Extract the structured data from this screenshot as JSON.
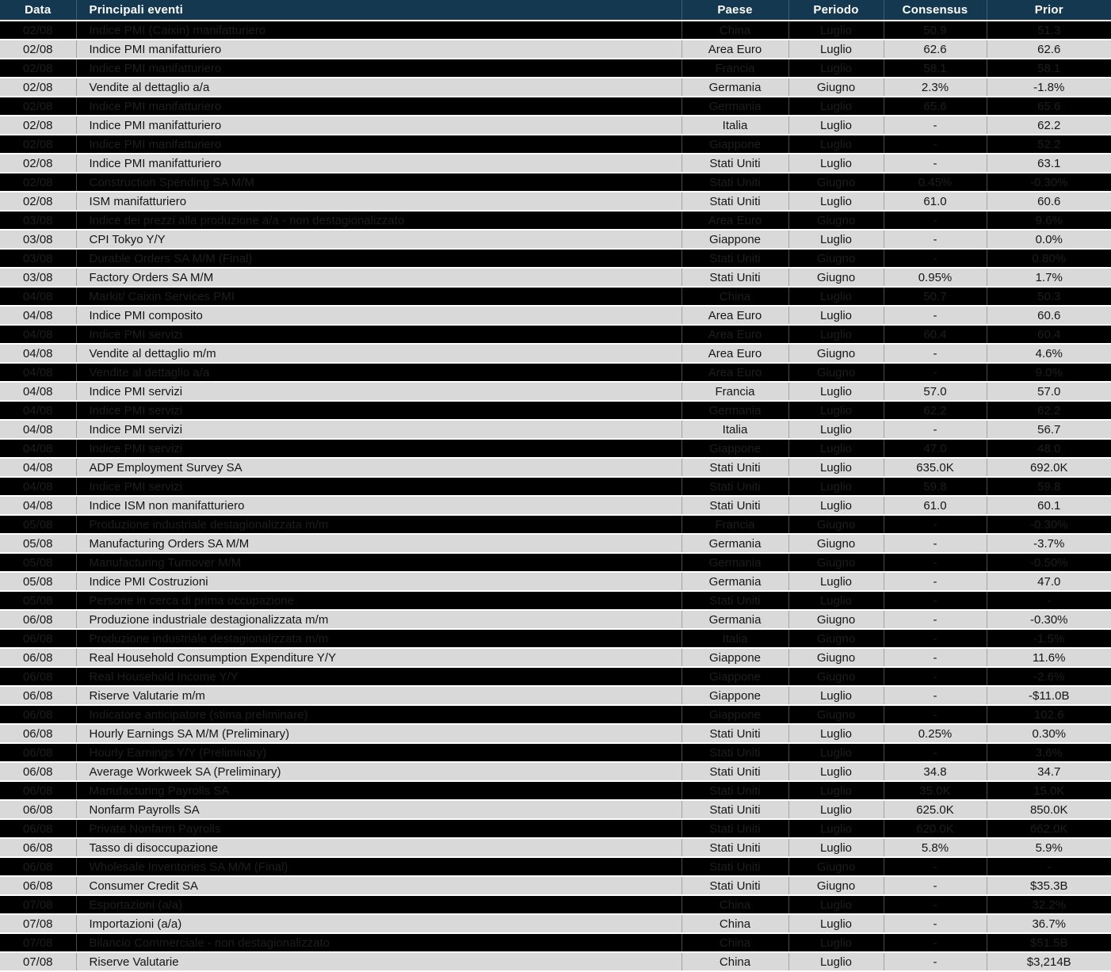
{
  "table": {
    "columns": [
      "Data",
      "Principali eventi",
      "Paese",
      "Periodo",
      "Consensus",
      "Prior"
    ],
    "rows": [
      {
        "data": "02/08",
        "evento": "Indice PMI (Caixin) manifatturiero",
        "paese": "China",
        "periodo": "Luglio",
        "consensus": "50.9",
        "prior": "51.3",
        "shade": "dark"
      },
      {
        "data": "02/08",
        "evento": "Indice PMI manifatturiero",
        "paese": "Area Euro",
        "periodo": "Luglio",
        "consensus": "62.6",
        "prior": "62.6",
        "shade": "light"
      },
      {
        "data": "02/08",
        "evento": "Indice PMI manifatturiero",
        "paese": "Francia",
        "periodo": "Luglio",
        "consensus": "58.1",
        "prior": "58.1",
        "shade": "dark"
      },
      {
        "data": "02/08",
        "evento": "Vendite al dettaglio a/a",
        "paese": "Germania",
        "periodo": "Giugno",
        "consensus": "2.3%",
        "prior": "-1.8%",
        "shade": "light"
      },
      {
        "data": "02/08",
        "evento": "Indice PMI manifatturiero",
        "paese": "Germania",
        "periodo": "Luglio",
        "consensus": "65.6",
        "prior": "65.6",
        "shade": "dark"
      },
      {
        "data": "02/08",
        "evento": "Indice PMI manifatturiero",
        "paese": "Italia",
        "periodo": "Luglio",
        "consensus": "-",
        "prior": "62.2",
        "shade": "light"
      },
      {
        "data": "02/08",
        "evento": "Indice PMI manifatturiero",
        "paese": "Giappone",
        "periodo": "Luglio",
        "consensus": "-",
        "prior": "52.2",
        "shade": "dark"
      },
      {
        "data": "02/08",
        "evento": "Indice PMI manifatturiero",
        "paese": "Stati Uniti",
        "periodo": "Luglio",
        "consensus": "-",
        "prior": "63.1",
        "shade": "light"
      },
      {
        "data": "02/08",
        "evento": "Construction Spending SA M/M",
        "paese": "Stati Uniti",
        "periodo": "Giugno",
        "consensus": "0.45%",
        "prior": "-0.30%",
        "shade": "dark"
      },
      {
        "data": "02/08",
        "evento": "ISM manifatturiero",
        "paese": "Stati Uniti",
        "periodo": "Luglio",
        "consensus": "61.0",
        "prior": "60.6",
        "shade": "light"
      },
      {
        "data": "03/08",
        "evento": "Indice dei prezzi alla produzione a/a - non destagionalizzato",
        "paese": "Area Euro",
        "periodo": "Giugno",
        "consensus": "-",
        "prior": "9.6%",
        "shade": "dark"
      },
      {
        "data": "03/08",
        "evento": "CPI Tokyo Y/Y",
        "paese": "Giappone",
        "periodo": "Luglio",
        "consensus": "-",
        "prior": "0.0%",
        "shade": "light"
      },
      {
        "data": "03/08",
        "evento": "Durable Orders SA M/M (Final)",
        "paese": "Stati Uniti",
        "periodo": "Giugno",
        "consensus": "-",
        "prior": "0.80%",
        "shade": "dark"
      },
      {
        "data": "03/08",
        "evento": "Factory Orders SA M/M",
        "paese": "Stati Uniti",
        "periodo": "Giugno",
        "consensus": "0.95%",
        "prior": "1.7%",
        "shade": "light"
      },
      {
        "data": "04/08",
        "evento": "Markit/ Caixin Services PMI",
        "paese": "China",
        "periodo": "Luglio",
        "consensus": "50.7",
        "prior": "50.3",
        "shade": "dark"
      },
      {
        "data": "04/08",
        "evento": "Indice PMI composito",
        "paese": "Area Euro",
        "periodo": "Luglio",
        "consensus": "-",
        "prior": "60.6",
        "shade": "light"
      },
      {
        "data": "04/08",
        "evento": "Indice PMI servizi",
        "paese": "Area Euro",
        "periodo": "Luglio",
        "consensus": "60.4",
        "prior": "60.4",
        "shade": "dark"
      },
      {
        "data": "04/08",
        "evento": "Vendite al dettaglio m/m",
        "paese": "Area Euro",
        "periodo": "Giugno",
        "consensus": "-",
        "prior": "4.6%",
        "shade": "light"
      },
      {
        "data": "04/08",
        "evento": "Vendite al dettaglio a/a",
        "paese": "Area Euro",
        "periodo": "Giugno",
        "consensus": "-",
        "prior": "9.0%",
        "shade": "dark"
      },
      {
        "data": "04/08",
        "evento": "Indice PMI servizi",
        "paese": "Francia",
        "periodo": "Luglio",
        "consensus": "57.0",
        "prior": "57.0",
        "shade": "light"
      },
      {
        "data": "04/08",
        "evento": "Indice PMI servizi",
        "paese": "Germania",
        "periodo": "Luglio",
        "consensus": "62.2",
        "prior": "62.2",
        "shade": "dark"
      },
      {
        "data": "04/08",
        "evento": "Indice PMI servizi",
        "paese": "Italia",
        "periodo": "Luglio",
        "consensus": "-",
        "prior": "56.7",
        "shade": "light"
      },
      {
        "data": "04/08",
        "evento": "Indice PMI servizi",
        "paese": "Giappone",
        "periodo": "Luglio",
        "consensus": "47.0",
        "prior": "48.0",
        "shade": "dark"
      },
      {
        "data": "04/08",
        "evento": "ADP Employment Survey SA",
        "paese": "Stati Uniti",
        "periodo": "Luglio",
        "consensus": "635.0K",
        "prior": "692.0K",
        "shade": "light"
      },
      {
        "data": "04/08",
        "evento": "Indice PMI servizi",
        "paese": "Stati Uniti",
        "periodo": "Luglio",
        "consensus": "59.8",
        "prior": "59.8",
        "shade": "dark"
      },
      {
        "data": "04/08",
        "evento": "Indice ISM non manifatturiero",
        "paese": "Stati Uniti",
        "periodo": "Luglio",
        "consensus": "61.0",
        "prior": "60.1",
        "shade": "light"
      },
      {
        "data": "05/08",
        "evento": "Produzione industriale destagionalizzata m/m",
        "paese": "Francia",
        "periodo": "Giugno",
        "consensus": "-",
        "prior": "-0.30%",
        "shade": "dark"
      },
      {
        "data": "05/08",
        "evento": "Manufacturing Orders SA M/M",
        "paese": "Germania",
        "periodo": "Giugno",
        "consensus": "-",
        "prior": "-3.7%",
        "shade": "light"
      },
      {
        "data": "05/08",
        "evento": "Manufacturing Turnover M/M",
        "paese": "Germania",
        "periodo": "Giugno",
        "consensus": "-",
        "prior": "-0.50%",
        "shade": "dark"
      },
      {
        "data": "05/08",
        "evento": "Indice PMI  Costruzioni",
        "paese": "Germania",
        "periodo": "Luglio",
        "consensus": "-",
        "prior": "47.0",
        "shade": "light"
      },
      {
        "data": "05/08",
        "evento": "Persone in cerca di prima occupazione",
        "paese": "Stati Uniti",
        "periodo": "Luglio",
        "consensus": "-",
        "prior": "-",
        "shade": "dark"
      },
      {
        "data": "06/08",
        "evento": "Produzione industriale destagionalizzata m/m",
        "paese": "Germania",
        "periodo": "Giugno",
        "consensus": "-",
        "prior": "-0.30%",
        "shade": "light"
      },
      {
        "data": "06/08",
        "evento": "Produzione industriale destagionalizzata m/m",
        "paese": "Italia",
        "periodo": "Giugno",
        "consensus": "-",
        "prior": "-1.5%",
        "shade": "dark"
      },
      {
        "data": "06/08",
        "evento": "Real Household Consumption Expenditure Y/Y",
        "paese": "Giappone",
        "periodo": "Giugno",
        "consensus": "-",
        "prior": "11.6%",
        "shade": "light"
      },
      {
        "data": "06/08",
        "evento": "Real Household Income Y/Y",
        "paese": "Giappone",
        "periodo": "Giugno",
        "consensus": "-",
        "prior": "-2.6%",
        "shade": "dark"
      },
      {
        "data": "06/08",
        "evento": "Riserve Valutarie m/m",
        "paese": "Giappone",
        "periodo": "Luglio",
        "consensus": "-",
        "prior": "-$11.0B",
        "shade": "light"
      },
      {
        "data": "06/08",
        "evento": "Indicatore anticipatore (stima preliminare)",
        "paese": "Giappone",
        "periodo": "Giugno",
        "consensus": "-",
        "prior": "102.6",
        "shade": "dark"
      },
      {
        "data": "06/08",
        "evento": "Hourly Earnings SA M/M (Preliminary)",
        "paese": "Stati Uniti",
        "periodo": "Luglio",
        "consensus": "0.25%",
        "prior": "0.30%",
        "shade": "light"
      },
      {
        "data": "06/08",
        "evento": "Hourly Earnings Y/Y (Preliminary)",
        "paese": "Stati Uniti",
        "periodo": "Luglio",
        "consensus": "-",
        "prior": "3.6%",
        "shade": "dark"
      },
      {
        "data": "06/08",
        "evento": "Average Workweek SA (Preliminary)",
        "paese": "Stati Uniti",
        "periodo": "Luglio",
        "consensus": "34.8",
        "prior": "34.7",
        "shade": "light"
      },
      {
        "data": "06/08",
        "evento": "Manufacturing Payrolls SA",
        "paese": "Stati Uniti",
        "periodo": "Luglio",
        "consensus": "35.0K",
        "prior": "15.0K",
        "shade": "dark"
      },
      {
        "data": "06/08",
        "evento": "Nonfarm Payrolls SA",
        "paese": "Stati Uniti",
        "periodo": "Luglio",
        "consensus": "625.0K",
        "prior": "850.0K",
        "shade": "light"
      },
      {
        "data": "06/08",
        "evento": "Private Nonfarm Payrolls",
        "paese": "Stati Uniti",
        "periodo": "Luglio",
        "consensus": "620.0K",
        "prior": "662.0K",
        "shade": "dark"
      },
      {
        "data": "06/08",
        "evento": "Tasso di disoccupazione",
        "paese": "Stati Uniti",
        "periodo": "Luglio",
        "consensus": "5.8%",
        "prior": "5.9%",
        "shade": "light"
      },
      {
        "data": "06/08",
        "evento": "Wholesale Inventories SA M/M (Final)",
        "paese": "Stati Uniti",
        "periodo": "Giugno",
        "consensus": "-",
        "prior": "-",
        "shade": "dark"
      },
      {
        "data": "06/08",
        "evento": "Consumer Credit SA",
        "paese": "Stati Uniti",
        "periodo": "Giugno",
        "consensus": "-",
        "prior": "$35.3B",
        "shade": "light"
      },
      {
        "data": "07/08",
        "evento": "Esportazioni (a/a)",
        "paese": "China",
        "periodo": "Luglio",
        "consensus": "-",
        "prior": "32.2%",
        "shade": "dark"
      },
      {
        "data": "07/08",
        "evento": "Importazioni (a/a)",
        "paese": "China",
        "periodo": "Luglio",
        "consensus": "-",
        "prior": "36.7%",
        "shade": "light"
      },
      {
        "data": "07/08",
        "evento": "Bilancio Commerciale - non destagionalizzato",
        "paese": "China",
        "periodo": "Luglio",
        "consensus": "-",
        "prior": "$51.5B",
        "shade": "dark"
      },
      {
        "data": "07/08",
        "evento": "Riserve Valutarie",
        "paese": "China",
        "periodo": "Luglio",
        "consensus": "-",
        "prior": "$3,214B",
        "shade": "light"
      }
    ]
  },
  "colors": {
    "header_bg": "#14384F",
    "header_text": "#FFFFFF",
    "row_light_bg": "#D9D9D9",
    "row_dark_bg": "#000000",
    "row_dark_text": "#1D1D1D",
    "row_light_text": "#151515",
    "grid_line": "#FFFFFF"
  }
}
